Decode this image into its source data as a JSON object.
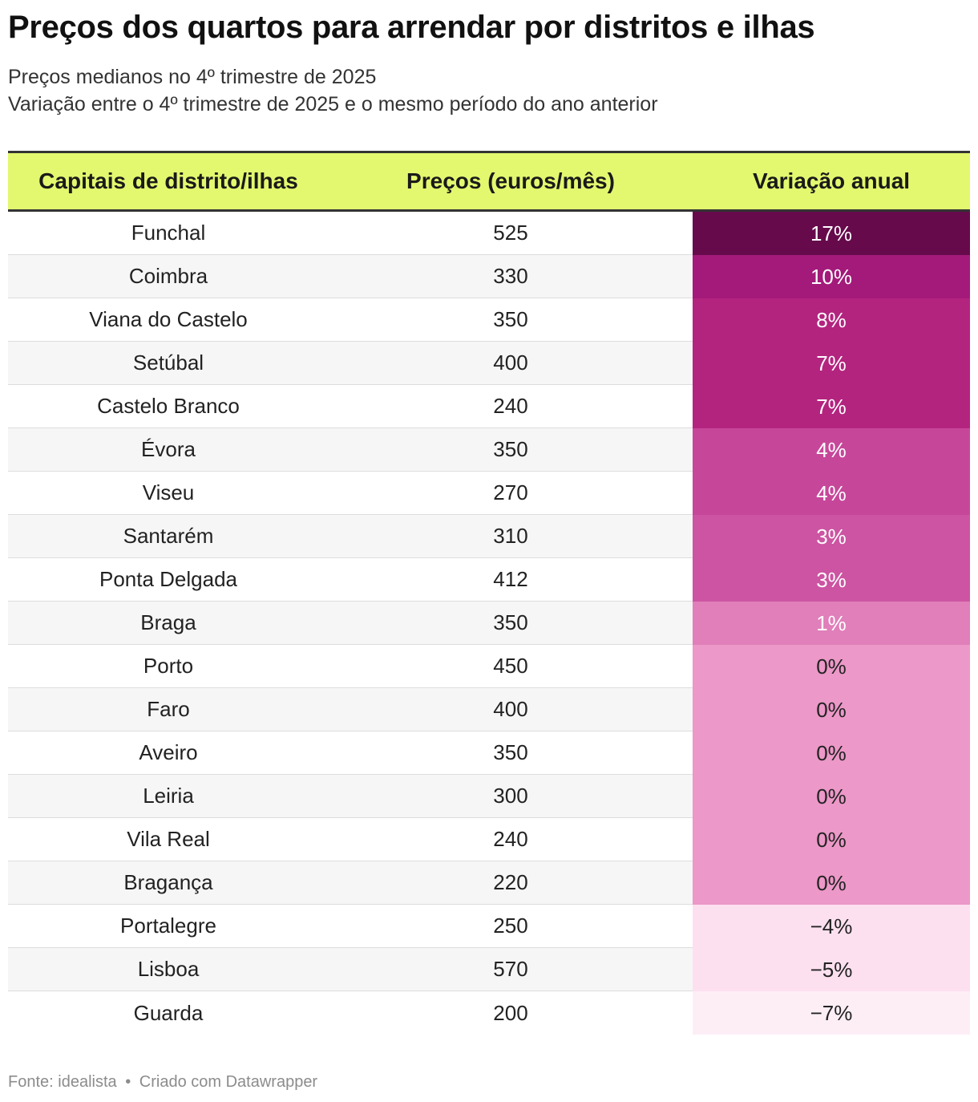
{
  "title": "Preços dos quartos para arrendar por distritos e ilhas",
  "subtitle_line1": "Preços medianos no 4º trimestre de 2025",
  "subtitle_line2": "Variação entre o 4º trimestre de 2025 e o mesmo período do ano anterior",
  "footer": {
    "source": "Fonte: idealista",
    "separator": "•",
    "credit": "Criado com Datawrapper"
  },
  "colors": {
    "header_background": "#e3f86f",
    "var_17": "#660a4c",
    "var_10": "#a31a7a",
    "var_8": "#b3247f",
    "var_7": "#b3247f",
    "var_4": "#c6479a",
    "var_3": "#cc54a2",
    "var_1": "#e07fba",
    "var_0": "#ec98c8",
    "var_neg45": "#fde0ef",
    "var_neg7": "#fdeef6"
  },
  "chart_data": {
    "type": "table",
    "title": "Preços dos quartos para arrendar por distritos e ilhas",
    "columns": [
      "Capitais de distrito/ilhas",
      "Preços (euros/mês)",
      "Variação anual"
    ],
    "rows": [
      {
        "city": "Funchal",
        "price": "525",
        "variation": "17%",
        "variation_value": 17,
        "color": "#660a4c",
        "text_color": "#ffffff"
      },
      {
        "city": "Coimbra",
        "price": "330",
        "variation": "10%",
        "variation_value": 10,
        "color": "#a31a7a",
        "text_color": "#ffffff"
      },
      {
        "city": "Viana do Castelo",
        "price": "350",
        "variation": "8%",
        "variation_value": 8,
        "color": "#b3247f",
        "text_color": "#ffffff"
      },
      {
        "city": "Setúbal",
        "price": "400",
        "variation": "7%",
        "variation_value": 7,
        "color": "#b3247f",
        "text_color": "#ffffff"
      },
      {
        "city": "Castelo Branco",
        "price": "240",
        "variation": "7%",
        "variation_value": 7,
        "color": "#b3247f",
        "text_color": "#ffffff"
      },
      {
        "city": "Évora",
        "price": "350",
        "variation": "4%",
        "variation_value": 4,
        "color": "#c6479a",
        "text_color": "#ffffff"
      },
      {
        "city": "Viseu",
        "price": "270",
        "variation": "4%",
        "variation_value": 4,
        "color": "#c6479a",
        "text_color": "#ffffff"
      },
      {
        "city": "Santarém",
        "price": "310",
        "variation": "3%",
        "variation_value": 3,
        "color": "#cc54a2",
        "text_color": "#ffffff"
      },
      {
        "city": "Ponta Delgada",
        "price": "412",
        "variation": "3%",
        "variation_value": 3,
        "color": "#cc54a2",
        "text_color": "#ffffff"
      },
      {
        "city": "Braga",
        "price": "350",
        "variation": "1%",
        "variation_value": 1,
        "color": "#e07fba",
        "text_color": "#ffffff"
      },
      {
        "city": "Porto",
        "price": "450",
        "variation": "0%",
        "variation_value": 0,
        "color": "#ec98c8",
        "text_color": "#222222"
      },
      {
        "city": "Faro",
        "price": "400",
        "variation": "0%",
        "variation_value": 0,
        "color": "#ec98c8",
        "text_color": "#222222"
      },
      {
        "city": "Aveiro",
        "price": "350",
        "variation": "0%",
        "variation_value": 0,
        "color": "#ec98c8",
        "text_color": "#222222"
      },
      {
        "city": "Leiria",
        "price": "300",
        "variation": "0%",
        "variation_value": 0,
        "color": "#ec98c8",
        "text_color": "#222222"
      },
      {
        "city": "Vila Real",
        "price": "240",
        "variation": "0%",
        "variation_value": 0,
        "color": "#ec98c8",
        "text_color": "#222222"
      },
      {
        "city": "Bragança",
        "price": "220",
        "variation": "0%",
        "variation_value": 0,
        "color": "#ec98c8",
        "text_color": "#222222"
      },
      {
        "city": "Portalegre",
        "price": "250",
        "variation": "−4%",
        "variation_value": -4,
        "color": "#fde0ef",
        "text_color": "#222222"
      },
      {
        "city": "Lisboa",
        "price": "570",
        "variation": "−5%",
        "variation_value": -5,
        "color": "#fde0ef",
        "text_color": "#222222"
      },
      {
        "city": "Guarda",
        "price": "200",
        "variation": "−7%",
        "variation_value": -7,
        "color": "#fdeef6",
        "text_color": "#222222"
      }
    ]
  }
}
